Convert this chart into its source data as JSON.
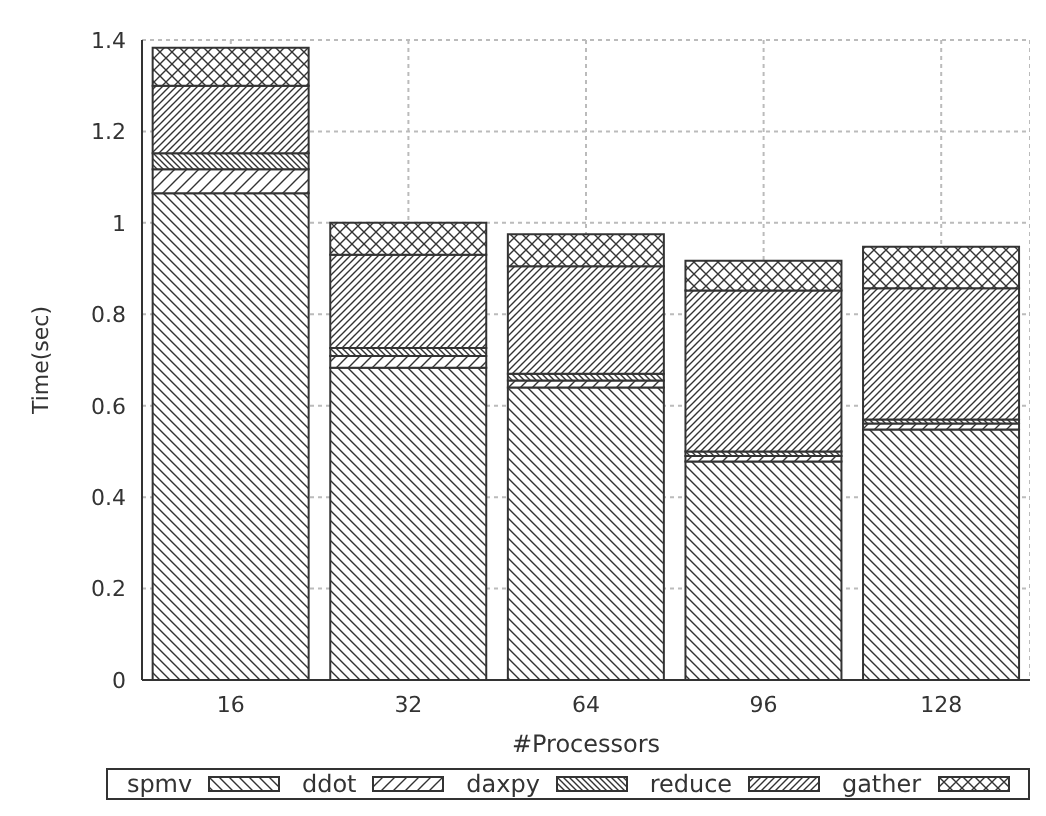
{
  "chart_data": {
    "type": "bar",
    "stacked": true,
    "xlabel": "#Processors",
    "ylabel": "Time(sec)",
    "categories": [
      "16",
      "32",
      "64",
      "96",
      "128"
    ],
    "series": [
      {
        "name": "spmv",
        "color": "#333333",
        "values": [
          1.065,
          0.683,
          0.64,
          0.478,
          0.548
        ]
      },
      {
        "name": "ddot",
        "color": "#333333",
        "values": [
          0.052,
          0.026,
          0.015,
          0.012,
          0.013
        ]
      },
      {
        "name": "daxpy",
        "color": "#333333",
        "values": [
          0.035,
          0.017,
          0.015,
          0.01,
          0.009
        ]
      },
      {
        "name": "reduce",
        "color": "#333333",
        "values": [
          0.148,
          0.204,
          0.235,
          0.352,
          0.287
        ]
      },
      {
        "name": "gather",
        "color": "#333333",
        "values": [
          0.083,
          0.07,
          0.07,
          0.065,
          0.091
        ]
      }
    ],
    "ylim": [
      0,
      1.4
    ],
    "yticks": [
      0,
      0.2,
      0.4,
      0.6,
      0.8,
      1,
      1.2,
      1.4
    ],
    "grid": true,
    "legend": "bottom"
  }
}
